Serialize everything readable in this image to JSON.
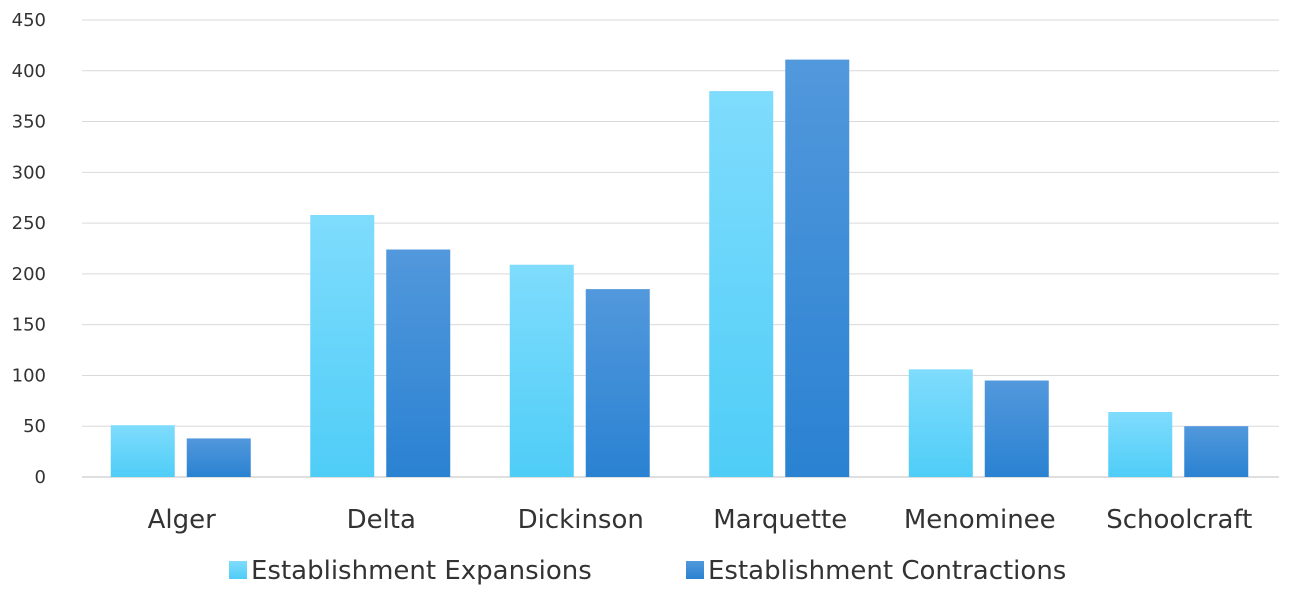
{
  "chart_data": {
    "type": "bar",
    "title": "",
    "xlabel": "",
    "ylabel": "",
    "categories": [
      "Alger",
      "Delta",
      "Dickinson",
      "Marquette",
      "Menominee",
      "Schoolcraft"
    ],
    "series": [
      {
        "name": "Establishment Expansions",
        "values": [
          51,
          258,
          209,
          380,
          106,
          64
        ],
        "color": "#5ad3fb"
      },
      {
        "name": "Establishment Contractions",
        "values": [
          38,
          224,
          185,
          411,
          95,
          50
        ],
        "color": "#2f8ad6"
      }
    ],
    "ylim": [
      0,
      450
    ],
    "yticks": [
      0,
      50,
      100,
      150,
      200,
      250,
      300,
      350,
      400,
      450
    ],
    "grid": true,
    "legend_position": "bottom"
  }
}
